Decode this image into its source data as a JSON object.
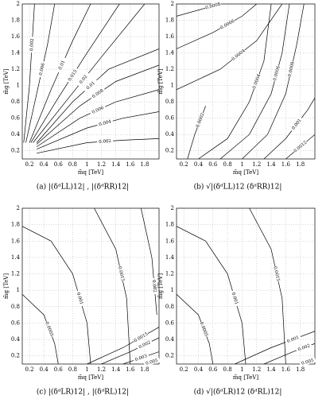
{
  "chart_data": [
    {
      "type": "contour",
      "caption": "(a) |(δᵈLL)12| , |(δᵈRR)12|",
      "xlabel": "m̃q [TeV]",
      "ylabel": "m̃g [TeV]",
      "xlim": [
        0.1,
        2
      ],
      "ylim": [
        0.1,
        2
      ],
      "xticks": [
        0.2,
        0.4,
        0.6,
        0.8,
        1,
        1.2,
        1.4,
        1.6,
        1.8
      ],
      "yticks": [
        0.2,
        0.4,
        0.6,
        0.8,
        1,
        1.2,
        1.4,
        1.6,
        1.8,
        2
      ],
      "grid": true,
      "contours": [
        {
          "level": 0.002,
          "x": [
            0.12,
            0.2,
            0.27
          ],
          "y": [
            0.3,
            1.0,
            2.0
          ]
        },
        {
          "level": 0.006,
          "x": [
            0.15,
            0.3,
            0.45,
            0.55
          ],
          "y": [
            0.3,
            0.9,
            1.5,
            2.0
          ]
        },
        {
          "level": 0.01,
          "x": [
            0.2,
            0.5,
            0.8,
            1.05
          ],
          "y": [
            0.3,
            0.95,
            1.55,
            2.0
          ]
        },
        {
          "level": 0.015,
          "x": [
            0.22,
            0.6,
            1.0,
            1.45
          ],
          "y": [
            0.3,
            0.85,
            1.4,
            2.0
          ]
        },
        {
          "level": 0.02,
          "x": [
            0.25,
            0.7,
            1.2,
            1.8
          ],
          "y": [
            0.3,
            0.8,
            1.35,
            2.0
          ]
        },
        {
          "level": 0.01,
          "x": [
            0.3,
            0.8,
            1.3,
            2.0
          ],
          "y": [
            0.3,
            0.8,
            1.2,
            1.45
          ]
        },
        {
          "level": 0.008,
          "x": [
            0.3,
            0.9,
            1.4,
            2.0
          ],
          "y": [
            0.28,
            0.75,
            1.05,
            1.25
          ]
        },
        {
          "level": 0.006,
          "x": [
            0.3,
            0.9,
            1.4,
            2.0
          ],
          "y": [
            0.25,
            0.6,
            0.8,
            0.95
          ]
        },
        {
          "level": 0.004,
          "x": [
            0.3,
            1.0,
            1.5,
            2.0
          ],
          "y": [
            0.22,
            0.48,
            0.6,
            0.68
          ]
        },
        {
          "level": 0.002,
          "x": [
            0.3,
            1.0,
            1.5,
            2.0
          ],
          "y": [
            0.17,
            0.3,
            0.33,
            0.35
          ]
        }
      ]
    },
    {
      "type": "contour",
      "caption": "(b) √|(δᵈLL)12 (δᵈRR)12|",
      "xlabel": "m̃q [TeV]",
      "ylabel": "m̃g [TeV]",
      "xlim": [
        0.1,
        2
      ],
      "ylim": [
        0.1,
        2
      ],
      "xticks": [
        0.2,
        0.4,
        0.6,
        0.8,
        1,
        1.2,
        1.4,
        1.6,
        1.8
      ],
      "yticks": [
        0.2,
        0.4,
        0.6,
        0.8,
        1,
        1.2,
        1.4,
        1.6,
        1.8,
        2
      ],
      "grid": true,
      "contours": [
        {
          "level": 0.0008,
          "x": [
            0.1,
            0.5,
            0.7
          ],
          "y": [
            1.85,
            1.95,
            2.0
          ]
        },
        {
          "level": 0.0006,
          "x": [
            0.1,
            0.6,
            1.0,
            1.2
          ],
          "y": [
            1.45,
            1.65,
            1.85,
            2.0
          ]
        },
        {
          "level": 0.0004,
          "x": [
            0.1,
            0.7,
            1.2,
            1.55
          ],
          "y": [
            0.95,
            1.2,
            1.55,
            2.0
          ]
        },
        {
          "level": 0.0002,
          "x": [
            0.25,
            0.35,
            0.5
          ],
          "y": [
            0.1,
            0.4,
            0.75
          ]
        },
        {
          "level": 0.0004,
          "x": [
            0.4,
            0.8,
            1.1,
            1.3,
            1.4
          ],
          "y": [
            0.1,
            0.35,
            0.8,
            1.3,
            2.0
          ]
        },
        {
          "level": 0.0006,
          "x": [
            0.7,
            1.1,
            1.4,
            1.55,
            1.65
          ],
          "y": [
            0.1,
            0.4,
            0.9,
            1.4,
            2.0
          ]
        },
        {
          "level": 0.0008,
          "x": [
            1.0,
            1.35,
            1.6,
            1.75,
            1.85
          ],
          "y": [
            0.1,
            0.4,
            0.9,
            1.5,
            2.0
          ]
        },
        {
          "level": 0.001,
          "x": [
            1.3,
            1.6,
            1.9,
            2.0
          ],
          "y": [
            0.1,
            0.35,
            0.7,
            0.85
          ]
        },
        {
          "level": 0.0012,
          "x": [
            1.6,
            2.0
          ],
          "y": [
            0.1,
            0.4
          ]
        }
      ]
    },
    {
      "type": "contour",
      "caption": "(c) |(δᵈLR)12| , |(δᵈRL)12|",
      "xlabel": "m̃q [TeV]",
      "ylabel": "m̃g [TeV]",
      "xlim": [
        0.1,
        2
      ],
      "ylim": [
        0.1,
        2
      ],
      "xticks": [
        0.2,
        0.4,
        0.6,
        0.8,
        1,
        1.2,
        1.4,
        1.6,
        1.8
      ],
      "yticks": [
        0.2,
        0.4,
        0.6,
        0.8,
        1,
        1.2,
        1.4,
        1.6,
        1.8,
        2
      ],
      "grid": true,
      "contours": [
        {
          "level": 0.0005,
          "x": [
            0.1,
            0.4,
            0.55,
            0.6
          ],
          "y": [
            0.95,
            0.7,
            0.35,
            0.1
          ]
        },
        {
          "level": 0.001,
          "x": [
            0.1,
            0.5,
            0.8,
            1.0,
            1.05
          ],
          "y": [
            1.78,
            1.6,
            1.2,
            0.6,
            0.1
          ]
        },
        {
          "level": 0.0015,
          "x": [
            1.1,
            1.4,
            1.55,
            1.6
          ],
          "y": [
            2.0,
            1.5,
            0.9,
            0.1
          ]
        },
        {
          "level": 0.002,
          "x": [
            1.75,
            1.9,
            1.97
          ],
          "y": [
            2.0,
            1.4,
            0.7
          ]
        },
        {
          "level": 0.0015,
          "x": [
            1.0,
            1.5,
            2.0
          ],
          "y": [
            0.1,
            0.3,
            0.55
          ]
        },
        {
          "level": 0.002,
          "x": [
            1.2,
            1.6,
            2.0
          ],
          "y": [
            0.1,
            0.25,
            0.42
          ]
        },
        {
          "level": 0.003,
          "x": [
            1.5,
            2.0
          ],
          "y": [
            0.1,
            0.25
          ]
        },
        {
          "level": 0.005,
          "x": [
            1.8,
            2.0
          ],
          "y": [
            0.1,
            0.15
          ]
        }
      ]
    },
    {
      "type": "contour",
      "caption": "(d) √|(δᵈLR)12 (δᵈRL)12|",
      "xlabel": "m̃q [TeV]",
      "ylabel": "m̃g [TeV]",
      "xlim": [
        0.1,
        2
      ],
      "ylim": [
        0.1,
        2
      ],
      "xticks": [
        0.2,
        0.4,
        0.6,
        0.8,
        1,
        1.2,
        1.4,
        1.6,
        1.8
      ],
      "yticks": [
        0.2,
        0.4,
        0.6,
        0.8,
        1,
        1.2,
        1.4,
        1.6,
        1.8,
        2
      ],
      "grid": true,
      "contours": [
        {
          "level": 0.0005,
          "x": [
            0.1,
            0.4,
            0.55,
            0.6
          ],
          "y": [
            0.95,
            0.7,
            0.35,
            0.1
          ]
        },
        {
          "level": 0.001,
          "x": [
            0.1,
            0.5,
            0.8,
            1.0,
            1.05
          ],
          "y": [
            1.78,
            1.6,
            1.2,
            0.6,
            0.1
          ]
        },
        {
          "level": 0.0015,
          "x": [
            1.1,
            1.4,
            1.55,
            1.6
          ],
          "y": [
            2.0,
            1.5,
            0.9,
            0.1
          ]
        },
        {
          "level": 0.001,
          "x": [
            0.9,
            1.4,
            2.0
          ],
          "y": [
            0.1,
            0.3,
            0.5
          ]
        },
        {
          "level": 0.002,
          "x": [
            1.3,
            1.7,
            2.0
          ],
          "y": [
            0.1,
            0.25,
            0.35
          ]
        },
        {
          "level": 0.005,
          "x": [
            1.8,
            2.0
          ],
          "y": [
            0.1,
            0.15
          ]
        }
      ]
    }
  ]
}
